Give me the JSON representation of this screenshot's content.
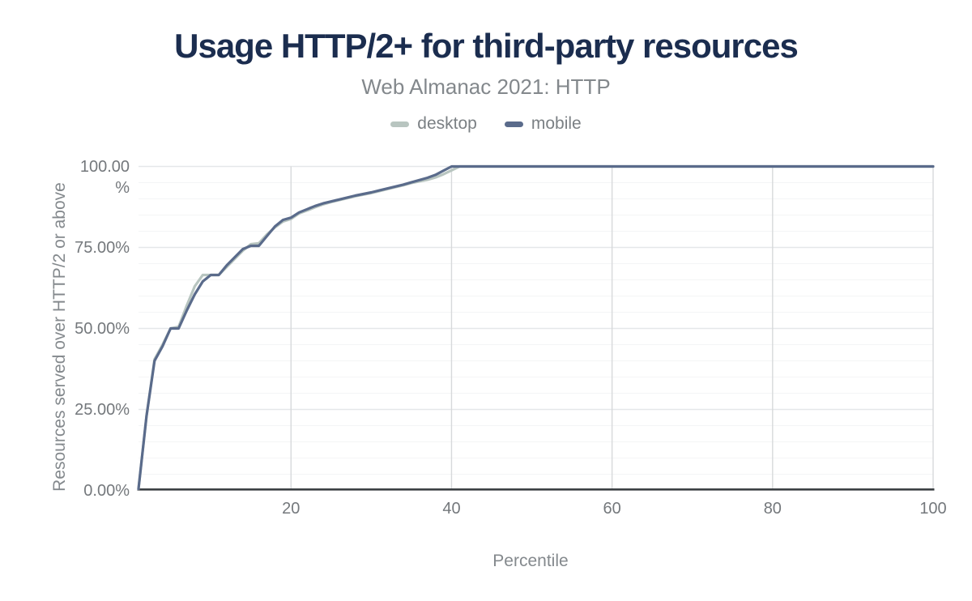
{
  "style": {
    "background": "#ffffff",
    "title_color": "#1b2d4f",
    "subtitle_color": "#83888c",
    "axis_title_color": "#84898d",
    "tick_label_color": "#74787c",
    "legend_text_color": "#7b8084",
    "grid_major_color": "#e5e7e9",
    "grid_minor_color": "#f4f5f6",
    "grid_vertical_color": "#d7d9db",
    "axis_line_color": "#3c4044",
    "desktop_color": "#b8c5c0",
    "mobile_color": "#5a6b8b"
  },
  "chart_data": {
    "type": "line",
    "title": "Usage HTTP/2+ for third-party resources",
    "subtitle": "Web Almanac 2021: HTTP",
    "xlabel": "Percentile",
    "ylabel": "Resources served over HTTP/2 or above",
    "xlim": [
      1,
      100
    ],
    "ylim": [
      0,
      100
    ],
    "grid": "on",
    "minor_y_gridline_step_percent": 5,
    "legend_position": "top-center",
    "x_ticks": [
      {
        "label": "20",
        "value": 20
      },
      {
        "label": "40",
        "value": 40
      },
      {
        "label": "60",
        "value": 60
      },
      {
        "label": "80",
        "value": 80
      },
      {
        "label": "100",
        "value": 100
      }
    ],
    "y_ticks": [
      {
        "label": "100.00 %",
        "value": 100
      },
      {
        "label": "75.00%",
        "value": 75
      },
      {
        "label": "50.00%",
        "value": 50
      },
      {
        "label": "25.00%",
        "value": 25
      },
      {
        "label": "0.00%",
        "value": 0
      }
    ],
    "x_start": 1,
    "x_step": 1,
    "x_meaning": "percentile 1..100",
    "y_unit": "percent of resources served over HTTP/2 or above",
    "series": [
      {
        "name": "desktop",
        "color": "#b8c5c0",
        "values": [
          0.5,
          23,
          40.5,
          45,
          50,
          50.5,
          57,
          63,
          66.5,
          66.5,
          66.5,
          69,
          71.5,
          74,
          76,
          76.3,
          79,
          81.2,
          83,
          83.8,
          85.5,
          86.4,
          87.4,
          88.3,
          89,
          89.6,
          90.2,
          90.8,
          91.3,
          91.8,
          92.4,
          93,
          93.6,
          94.2,
          94.9,
          95.4,
          95.9,
          96.6,
          97.6,
          98.8,
          100,
          100,
          100,
          100,
          100,
          100,
          100,
          100,
          100,
          100,
          100,
          100,
          100,
          100,
          100,
          100,
          100,
          100,
          100,
          100,
          100,
          100,
          100,
          100,
          100,
          100,
          100,
          100,
          100,
          100,
          100,
          100,
          100,
          100,
          100,
          100,
          100,
          100,
          100,
          100,
          100,
          100,
          100,
          100,
          100,
          100,
          100,
          100,
          100,
          100,
          100,
          100,
          100,
          100,
          100,
          100,
          100,
          100,
          100,
          100
        ]
      },
      {
        "name": "mobile",
        "color": "#5a6b8b",
        "values": [
          0.5,
          23,
          40,
          44.5,
          50,
          50,
          55.5,
          60.5,
          64.5,
          66.5,
          66.5,
          69.5,
          72,
          74.5,
          75.5,
          75.5,
          78.5,
          81.5,
          83.5,
          84.2,
          85.8,
          86.8,
          87.8,
          88.6,
          89.2,
          89.8,
          90.4,
          91,
          91.5,
          92,
          92.6,
          93.2,
          93.8,
          94.4,
          95.1,
          95.8,
          96.5,
          97.4,
          98.7,
          100,
          100,
          100,
          100,
          100,
          100,
          100,
          100,
          100,
          100,
          100,
          100,
          100,
          100,
          100,
          100,
          100,
          100,
          100,
          100,
          100,
          100,
          100,
          100,
          100,
          100,
          100,
          100,
          100,
          100,
          100,
          100,
          100,
          100,
          100,
          100,
          100,
          100,
          100,
          100,
          100,
          100,
          100,
          100,
          100,
          100,
          100,
          100,
          100,
          100,
          100,
          100,
          100,
          100,
          100,
          100,
          100,
          100,
          100,
          100,
          100
        ]
      }
    ]
  }
}
